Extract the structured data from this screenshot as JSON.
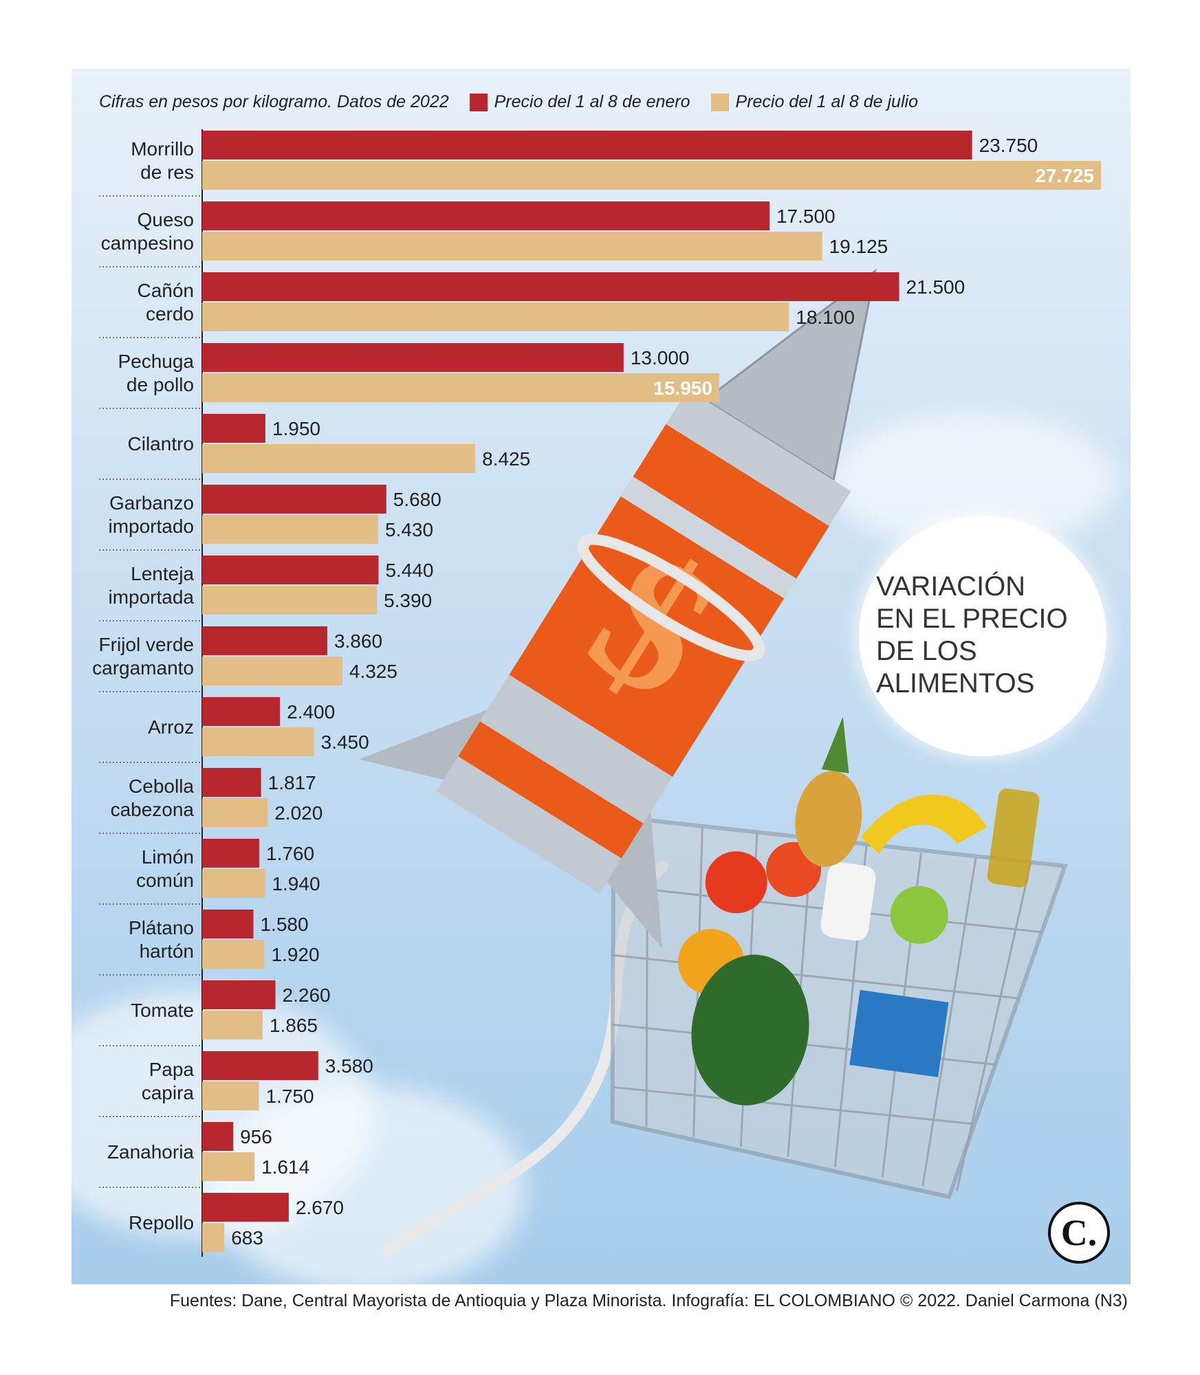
{
  "legend": {
    "note": "Cifras en pesos por kilogramo. Datos de 2022",
    "series_a_label": "Precio del 1 al 8 de enero",
    "series_b_label": "Precio del 1 al 8 de julio"
  },
  "colors": {
    "january": "#b8272e",
    "july": "#e3bd86",
    "panel": "#cfe2f3",
    "rocket": "#ea5b1a"
  },
  "title_lines": [
    "VARIACIÓN",
    "EN EL PRECIO",
    "DE LOS",
    "ALIMENTOS"
  ],
  "footer": "Fuentes: Dane, Central Mayorista de Antioquia y Plaza Minorista. Infografía: EL COLOMBIANO © 2022. Daniel Carmona (N3)",
  "logo": "C.",
  "illustration": "rocket-and-shopping-basket",
  "chart_data": {
    "type": "bar",
    "orientation": "horizontal",
    "categories": [
      [
        "Morrillo",
        "de res"
      ],
      [
        "Queso",
        "campesino"
      ],
      [
        "Cañón",
        "cerdo"
      ],
      [
        "Pechuga",
        "de pollo"
      ],
      [
        "Cilantro"
      ],
      [
        "Garbanzo",
        "importado"
      ],
      [
        "Lenteja",
        "importada"
      ],
      [
        "Frijol verde",
        "cargamanto"
      ],
      [
        "Arroz"
      ],
      [
        "Cebolla",
        "cabezona"
      ],
      [
        "Limón",
        "común"
      ],
      [
        "Plátano",
        "hartón"
      ],
      [
        "Tomate"
      ],
      [
        "Papa",
        "capira"
      ],
      [
        "Zanahoria"
      ],
      [
        "Repollo"
      ]
    ],
    "series": [
      {
        "name": "Precio del 1 al 8 de enero",
        "values": [
          23750,
          17500,
          21500,
          13000,
          1950,
          5680,
          5440,
          3860,
          2400,
          1817,
          1760,
          1580,
          2260,
          3580,
          956,
          2670
        ],
        "labels": [
          "23.750",
          "17.500",
          "21.500",
          "13.000",
          "1.950",
          "5.680",
          "5.440",
          "3.860",
          "2.400",
          "1.817",
          "1.760",
          "1.580",
          "2.260",
          "3.580",
          "956",
          "2.670"
        ]
      },
      {
        "name": "Precio del 1 al 8 de julio",
        "values": [
          27725,
          19125,
          18100,
          15950,
          8425,
          5430,
          5390,
          4325,
          3450,
          2020,
          1940,
          1920,
          1865,
          1750,
          1614,
          683
        ],
        "labels": [
          "27.725",
          "19.125",
          "18.100",
          "15.950",
          "8.425",
          "5.430",
          "5.390",
          "4.325",
          "3.450",
          "2.020",
          "1.940",
          "1.920",
          "1.865",
          "1.750",
          "1.614",
          "683"
        ]
      }
    ],
    "xlim": [
      0,
      27725
    ],
    "grid": false,
    "legend_position": "top"
  }
}
